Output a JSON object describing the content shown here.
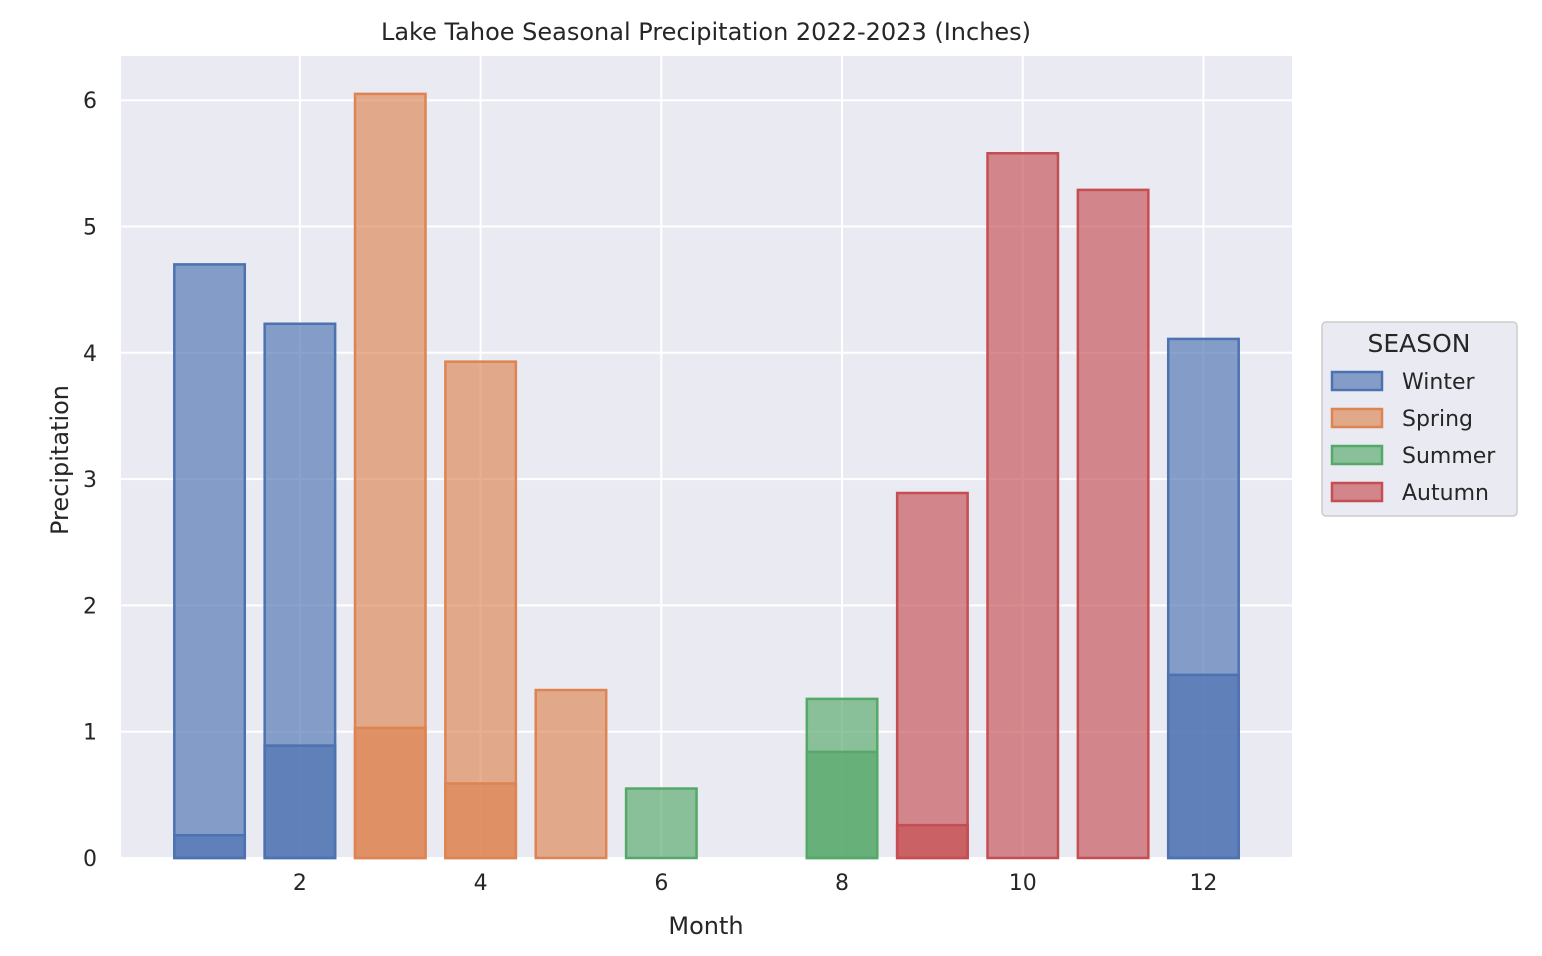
{
  "chart_data": {
    "type": "bar",
    "title": "Lake Tahoe Seasonal Precipitation 2022-2023 (Inches)",
    "xlabel": "Month",
    "ylabel": "Precipitation",
    "xlim": [
      0.02,
      12.98
    ],
    "ylim": [
      0,
      6.35
    ],
    "x_ticks": [
      2,
      4,
      6,
      8,
      10,
      12
    ],
    "y_ticks": [
      0,
      1,
      2,
      3,
      4,
      5,
      6
    ],
    "grid": true,
    "legend": {
      "title": "SEASON",
      "placement": "right",
      "entries": [
        "Winter",
        "Spring",
        "Summer",
        "Autumn"
      ]
    },
    "colors": {
      "Winter": "#4c72b0",
      "Spring": "#dd8452",
      "Summer": "#55a868",
      "Autumn": "#c44e52",
      "plot_background": "#eaeaf2",
      "grid": "#ffffff"
    },
    "series": [
      {
        "name": "Winter",
        "points": [
          {
            "month": 1,
            "value": 4.7
          },
          {
            "month": 1,
            "value": 0.18
          },
          {
            "month": 2,
            "value": 4.23
          },
          {
            "month": 2,
            "value": 0.89
          },
          {
            "month": 12,
            "value": 4.11
          },
          {
            "month": 12,
            "value": 1.45
          }
        ]
      },
      {
        "name": "Spring",
        "points": [
          {
            "month": 3,
            "value": 6.05
          },
          {
            "month": 3,
            "value": 1.03
          },
          {
            "month": 4,
            "value": 3.93
          },
          {
            "month": 4,
            "value": 0.59
          },
          {
            "month": 5,
            "value": 1.33
          }
        ]
      },
      {
        "name": "Summer",
        "points": [
          {
            "month": 6,
            "value": 0.55
          },
          {
            "month": 8,
            "value": 1.26
          },
          {
            "month": 8,
            "value": 0.84
          }
        ]
      },
      {
        "name": "Autumn",
        "points": [
          {
            "month": 9,
            "value": 2.89
          },
          {
            "month": 9,
            "value": 0.26
          },
          {
            "month": 10,
            "value": 5.58
          },
          {
            "month": 11,
            "value": 5.29
          }
        ]
      }
    ]
  }
}
